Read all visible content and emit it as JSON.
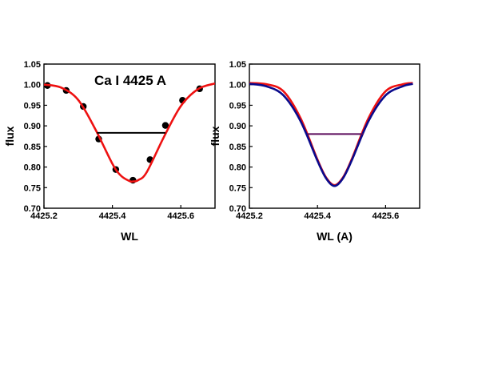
{
  "chart_data": [
    {
      "type": "line",
      "title": "Ca I 4425 A",
      "xlabel": "WL",
      "ylabel": "flux",
      "xlim": [
        4425.2,
        4425.7
      ],
      "ylim": [
        0.7,
        1.05
      ],
      "xticks": [
        "4425.2",
        "4425.4",
        "4425.6"
      ],
      "yticks": [
        "0.70",
        "0.75",
        "0.80",
        "0.85",
        "0.90",
        "0.95",
        "1.00",
        "1.05"
      ],
      "grid": false,
      "series": [
        {
          "kind": "points",
          "color": "#000000",
          "x": [
            4425.21,
            4425.265,
            4425.315,
            4425.36,
            4425.41,
            4425.46,
            4425.51,
            4425.555,
            4425.605,
            4425.655
          ],
          "y": [
            0.998,
            0.986,
            0.947,
            0.868,
            0.794,
            0.768,
            0.818,
            0.901,
            0.962,
            0.99
          ]
        },
        {
          "kind": "line",
          "color": "#ee1111",
          "x": [
            4425.2,
            4425.25,
            4425.3,
            4425.35,
            4425.4,
            4425.425,
            4425.45,
            4425.46,
            4425.475,
            4425.5,
            4425.55,
            4425.6,
            4425.65,
            4425.7
          ],
          "y": [
            1.0,
            0.993,
            0.963,
            0.892,
            0.808,
            0.779,
            0.766,
            0.765,
            0.768,
            0.787,
            0.872,
            0.948,
            0.989,
            1.003
          ]
        },
        {
          "kind": "hline",
          "color": "#000000",
          "x": [
            4425.355,
            4425.555
          ],
          "y": [
            0.883,
            0.883
          ]
        }
      ]
    },
    {
      "type": "line",
      "title": "",
      "xlabel": "WL (A)",
      "ylabel": "flux",
      "xlim": [
        4425.2,
        4425.7
      ],
      "ylim": [
        0.7,
        1.05
      ],
      "xticks": [
        "4425.2",
        "4425.4",
        "4425.6"
      ],
      "yticks": [
        "0.70",
        "0.75",
        "0.80",
        "0.85",
        "0.90",
        "0.95",
        "1.00",
        "1.05"
      ],
      "grid": false,
      "series": [
        {
          "kind": "line",
          "color": "#ee1111",
          "x": [
            4425.2,
            4425.25,
            4425.3,
            4425.35,
            4425.4,
            4425.425,
            4425.45,
            4425.475,
            4425.5,
            4425.55,
            4425.6,
            4425.65,
            4425.68
          ],
          "y": [
            1.004,
            1.001,
            0.984,
            0.919,
            0.818,
            0.775,
            0.756,
            0.775,
            0.818,
            0.919,
            0.984,
            1.001,
            1.004
          ]
        },
        {
          "kind": "line",
          "color": "#0a0a8c",
          "x": [
            4425.2,
            4425.25,
            4425.3,
            4425.35,
            4425.4,
            4425.425,
            4425.45,
            4425.475,
            4425.5,
            4425.55,
            4425.6,
            4425.65,
            4425.68
          ],
          "y": [
            1.002,
            0.996,
            0.974,
            0.912,
            0.815,
            0.773,
            0.754,
            0.773,
            0.815,
            0.912,
            0.974,
            0.996,
            1.002
          ]
        },
        {
          "kind": "hline",
          "color": "#5a0a5a",
          "x": [
            4425.37,
            4425.535
          ],
          "y": [
            0.88,
            0.88
          ]
        }
      ]
    }
  ]
}
